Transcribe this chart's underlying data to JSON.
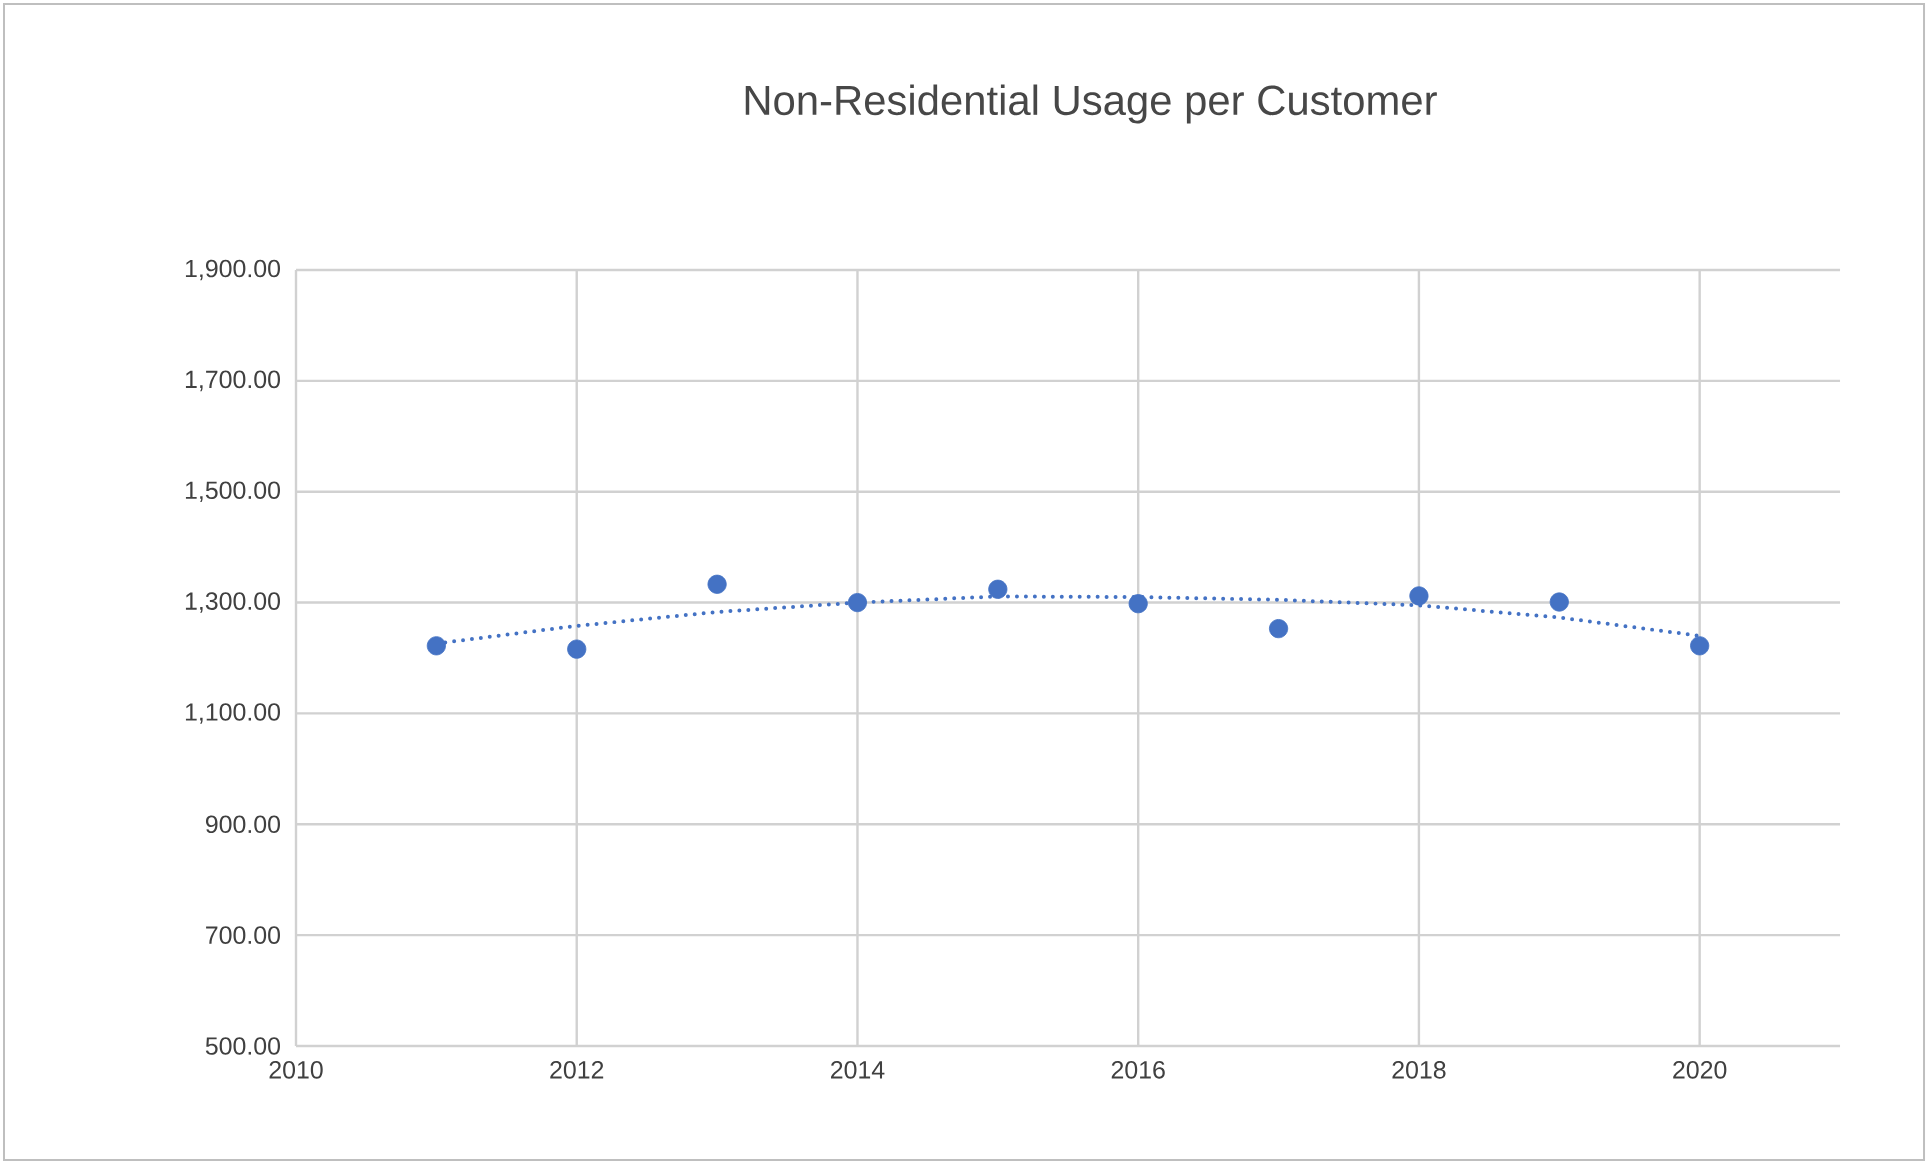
{
  "chart_data": {
    "type": "scatter",
    "title": "Non-Residential Usage per Customer",
    "x": [
      2011,
      2012,
      2013,
      2014,
      2015,
      2016,
      2017,
      2018,
      2019,
      2020
    ],
    "series": [
      {
        "type": "scatter",
        "color": "#4472c4",
        "marker": "circle",
        "values": [
          1222,
          1216,
          1333,
          1300,
          1324,
          1298,
          1253,
          1312,
          1301,
          1222
        ]
      },
      {
        "type": "line",
        "color": "#4472c4",
        "line_style": "dotted",
        "marker": "none",
        "x": [
          2011,
          2012,
          2013,
          2014,
          2015,
          2016,
          2017,
          2018,
          2019,
          2020
        ],
        "values": [
          1226,
          1258,
          1283,
          1300,
          1311,
          1310,
          1305,
          1295,
          1273,
          1240
        ]
      }
    ],
    "xlim": [
      2010,
      2021
    ],
    "xticks": [
      2010,
      2012,
      2014,
      2016,
      2018,
      2020
    ],
    "ylim": [
      500,
      1900
    ],
    "yticks": [
      {
        "value": 500,
        "label": "500.00"
      },
      {
        "value": 700,
        "label": "700.00"
      },
      {
        "value": 900,
        "label": "900.00"
      },
      {
        "value": 1100,
        "label": "1,100.00"
      },
      {
        "value": 1300,
        "label": "1,300.00"
      },
      {
        "value": 1500,
        "label": "1,500.00"
      },
      {
        "value": 1700,
        "label": "1,700.00"
      },
      {
        "value": 1900,
        "label": "1,900.00"
      }
    ],
    "grid": true
  }
}
